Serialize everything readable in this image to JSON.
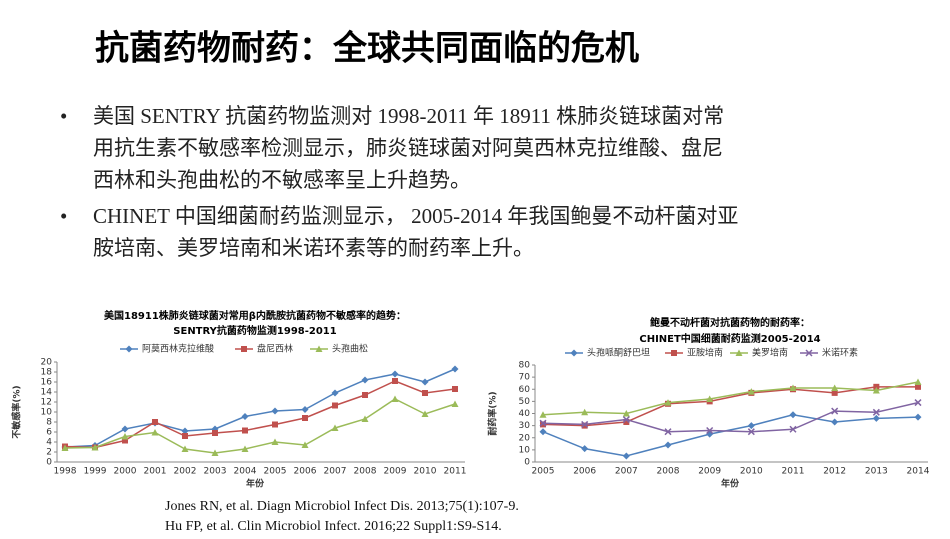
{
  "title": "抗菌药物耐药：全球共同面临的危机",
  "bullets": [
    [
      "美国 SENTRY 抗菌药物监测对 1998-2011 年 18911 株肺炎链球菌对常",
      "用抗生素不敏感率检测显示，肺炎链球菌对阿莫西林克拉维酸、盘尼",
      "西林和头孢曲松的不敏感率呈上升趋势。"
    ],
    [
      "CHINET 中国细菌耐药监测显示， 2005-2014 年我国鲍曼不动杆菌对亚",
      "胺培南、美罗培南和米诺环素等的耐药率上升。"
    ]
  ],
  "references": [
    "Jones RN, et al. Diagn Microbiol Infect Dis. 2013;75(1):107-9.",
    "Hu FP, et al. Clin Microbiol Infect. 2016;22 Suppl1:S9-S14."
  ],
  "chart_data": [
    {
      "type": "line",
      "title": [
        "美国18911株肺炎链球菌对常用β内酰胺抗菌药物不敏感率的趋势：",
        "SENTRY抗菌药物监测1998-2011"
      ],
      "y_label": "不敏感率(%)",
      "x_label": "年份",
      "categories": [
        "1998",
        "1999",
        "2000",
        "2001",
        "2002",
        "2003",
        "2004",
        "2005",
        "2006",
        "2007",
        "2008",
        "2009",
        "2010",
        "2011"
      ],
      "ylim": [
        0,
        20
      ],
      "yticks": [
        0,
        2,
        4,
        6,
        8,
        10,
        12,
        14,
        16,
        18,
        20
      ],
      "grid": false,
      "series": [
        {
          "name": "阿莫西林克拉维酸",
          "color": "#4f81bd",
          "marker": "diamond",
          "values": [
            3.0,
            3.3,
            6.6,
            7.8,
            6.2,
            6.6,
            9.1,
            10.2,
            10.5,
            13.8,
            16.4,
            17.6,
            16.0,
            18.6
          ]
        },
        {
          "name": "盘尼西林",
          "color": "#c0504d",
          "marker": "square",
          "values": [
            3.1,
            2.9,
            4.3,
            8.0,
            5.2,
            5.8,
            6.3,
            7.5,
            8.8,
            11.3,
            13.4,
            16.2,
            13.8,
            14.6
          ]
        },
        {
          "name": "头孢曲松",
          "color": "#9bbb59",
          "marker": "triangle",
          "values": [
            2.8,
            2.9,
            5.1,
            5.9,
            2.6,
            1.8,
            2.6,
            4.0,
            3.4,
            6.8,
            8.6,
            12.6,
            9.6,
            11.6
          ]
        }
      ]
    },
    {
      "type": "line",
      "title": [
        "鲍曼不动杆菌对抗菌药物的耐药率：",
        "CHINET中国细菌耐药监测2005-2014"
      ],
      "y_label": "耐药率(%)",
      "x_label": "年份",
      "categories": [
        "2005",
        "2006",
        "2007",
        "2008",
        "2009",
        "2010",
        "2011",
        "2012",
        "2013",
        "2014"
      ],
      "ylim": [
        0,
        80
      ],
      "yticks": [
        0,
        10,
        20,
        30,
        40,
        50,
        60,
        70,
        80
      ],
      "grid": false,
      "series": [
        {
          "name": "头孢哌酮舒巴坦",
          "color": "#4f81bd",
          "marker": "diamond",
          "values": [
            25,
            11,
            5,
            14,
            23,
            30,
            39,
            33,
            36,
            37
          ]
        },
        {
          "name": "亚胺培南",
          "color": "#c0504d",
          "marker": "square",
          "values": [
            31,
            30,
            33,
            48,
            50,
            57,
            60,
            57,
            62,
            62
          ]
        },
        {
          "name": "美罗培南",
          "color": "#9bbb59",
          "marker": "triangle",
          "values": [
            39,
            41,
            40,
            49,
            52,
            58,
            61,
            61,
            59,
            66
          ]
        },
        {
          "name": "米诺环素",
          "color": "#8064a2",
          "marker": "x",
          "values": [
            32,
            31,
            35,
            25,
            26,
            25,
            27,
            42,
            41,
            49
          ]
        }
      ]
    }
  ]
}
